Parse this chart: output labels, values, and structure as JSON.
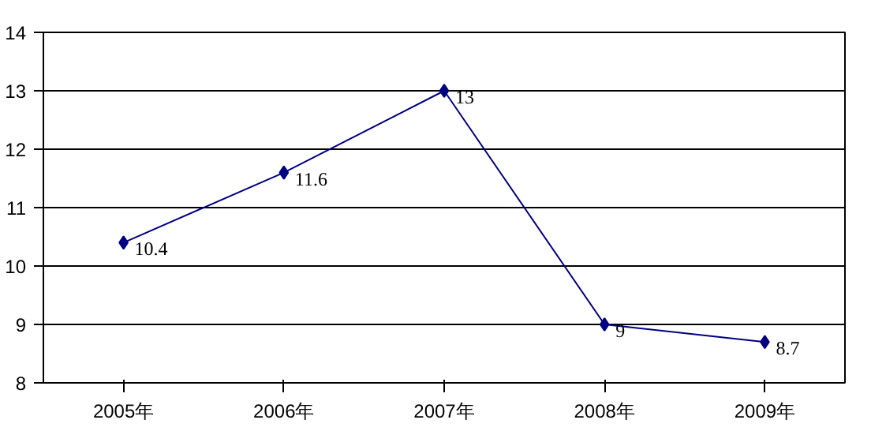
{
  "chart_data": {
    "type": "line",
    "categories": [
      "2005年",
      "2006年",
      "2007年",
      "2008年",
      "2009年"
    ],
    "series": [
      {
        "color": "#000080",
        "values": [
          10.4,
          11.6,
          13,
          9,
          8.7
        ]
      }
    ],
    "ylim": [
      8,
      14
    ],
    "yticks": [
      8,
      9,
      10,
      11,
      12,
      13,
      14
    ],
    "grid": "y",
    "marker": "diamond",
    "line_style": "solid",
    "data_labels": true
  }
}
